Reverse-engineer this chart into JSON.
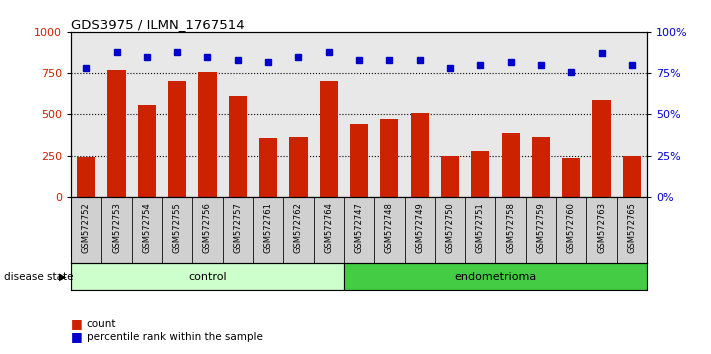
{
  "title": "GDS3975 / ILMN_1767514",
  "samples": [
    "GSM572752",
    "GSM572753",
    "GSM572754",
    "GSM572755",
    "GSM572756",
    "GSM572757",
    "GSM572761",
    "GSM572762",
    "GSM572764",
    "GSM572747",
    "GSM572748",
    "GSM572749",
    "GSM572750",
    "GSM572751",
    "GSM572758",
    "GSM572759",
    "GSM572760",
    "GSM572763",
    "GSM572765"
  ],
  "counts": [
    240,
    770,
    555,
    700,
    760,
    610,
    355,
    365,
    700,
    440,
    470,
    510,
    250,
    280,
    390,
    365,
    235,
    590,
    250
  ],
  "percentiles": [
    78,
    88,
    85,
    88,
    85,
    83,
    82,
    85,
    88,
    83,
    83,
    83,
    78,
    80,
    82,
    80,
    76,
    87,
    80
  ],
  "control_count": 9,
  "endometrioma_count": 10,
  "bar_color": "#cc2200",
  "dot_color": "#0000cc",
  "control_color": "#ccffcc",
  "endometrioma_color": "#44cc44",
  "control_label": "control",
  "endometrioma_label": "endometrioma",
  "disease_state_label": "disease state",
  "count_label": "count",
  "percentile_label": "percentile rank within the sample",
  "ylim_left": [
    0,
    1000
  ],
  "ylim_right": [
    0,
    100
  ],
  "yticks_left": [
    0,
    250,
    500,
    750,
    1000
  ],
  "yticks_right": [
    0,
    25,
    50,
    75,
    100
  ],
  "grid_values": [
    250,
    500,
    750
  ],
  "plot_bg": "#e8e8e8",
  "label_bg": "#d0d0d0"
}
